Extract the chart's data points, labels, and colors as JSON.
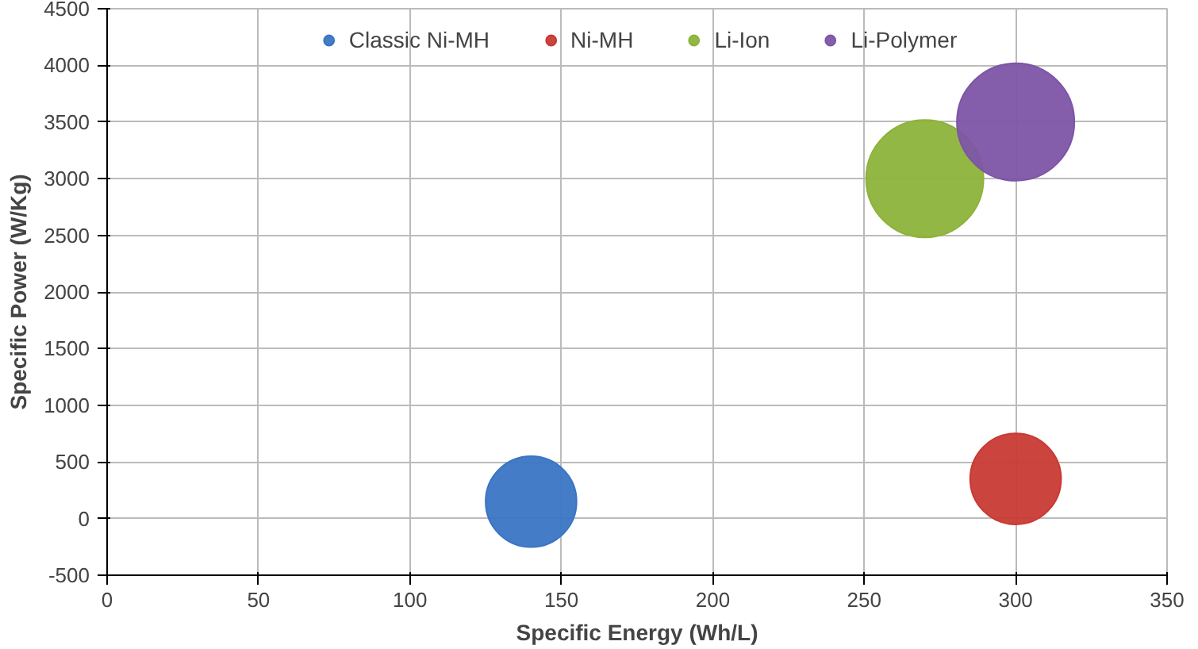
{
  "chart_data": {
    "type": "bubble",
    "xlabel": "Specific Energy (Wh/L)",
    "ylabel": "Specific Power (W/Kg)",
    "xlim": [
      0,
      350
    ],
    "xticks": [
      0,
      50,
      100,
      150,
      200,
      250,
      300,
      350
    ],
    "ylim": [
      -500,
      4500
    ],
    "yticks": [
      -500,
      0,
      500,
      1000,
      1500,
      2000,
      2500,
      3000,
      3500,
      4000,
      4500
    ],
    "grid": true,
    "legend": "top",
    "series": [
      {
        "name": "Classic Ni-MH",
        "color": "#3a75c4",
        "x": [
          140
        ],
        "values": [
          150
        ],
        "sizes": [
          0.6
        ]
      },
      {
        "name": "Ni-MH",
        "color": "#c83a33",
        "x": [
          300
        ],
        "values": [
          350
        ],
        "sizes": [
          0.6
        ]
      },
      {
        "name": "Li-Ion",
        "color": "#8db33a",
        "x": [
          270
        ],
        "values": [
          3000
        ],
        "sizes": [
          1
        ]
      },
      {
        "name": "Li-Polymer",
        "color": "#7d55a6",
        "x": [
          300
        ],
        "values": [
          3500
        ],
        "sizes": [
          1
        ]
      }
    ]
  }
}
